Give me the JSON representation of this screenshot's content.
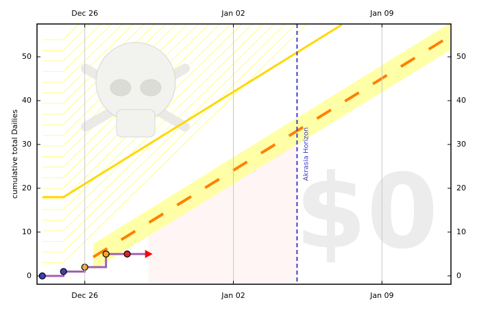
{
  "chart_data": {
    "type": "beeminder",
    "y_label": "cumulative total Dailies",
    "watermark": "$0",
    "xlim": [
      -2.25,
      17.25
    ],
    "xticks": [
      {
        "value": 0,
        "label": "Dec 26"
      },
      {
        "value": 7,
        "label": "Jan 02"
      },
      {
        "value": 14,
        "label": "Jan 09"
      }
    ],
    "ylim": [
      -1.9,
      57.5
    ],
    "yticks": [
      0,
      10,
      20,
      30,
      40,
      50
    ],
    "grid": true,
    "horizon": {
      "x": 10,
      "label": "Akrasia Horizon",
      "color": "#4040c8"
    },
    "road": {
      "x": [
        0.4,
        17.2
      ],
      "values": [
        4.3,
        54.7
      ],
      "color": "#ff8000",
      "band_color": "#ffff99",
      "band_low": [
        1.3,
        51.5
      ],
      "band_high": [
        7.3,
        57.7
      ]
    },
    "death_line": {
      "x": [
        -2,
        -1,
        12.1
      ],
      "values": [
        18,
        18,
        57.3
      ],
      "color": "#ffd700"
    },
    "datapoints": {
      "x": [
        -2,
        -1,
        0,
        1,
        2
      ],
      "values": [
        0,
        1,
        2,
        5,
        5
      ],
      "line_color": "#a060b0",
      "colors": [
        "#3f3fbf",
        "#3f3fbf",
        "#f5a623",
        "#f5a623",
        "#e0202e"
      ],
      "arrow_color": "#ff0000"
    }
  }
}
